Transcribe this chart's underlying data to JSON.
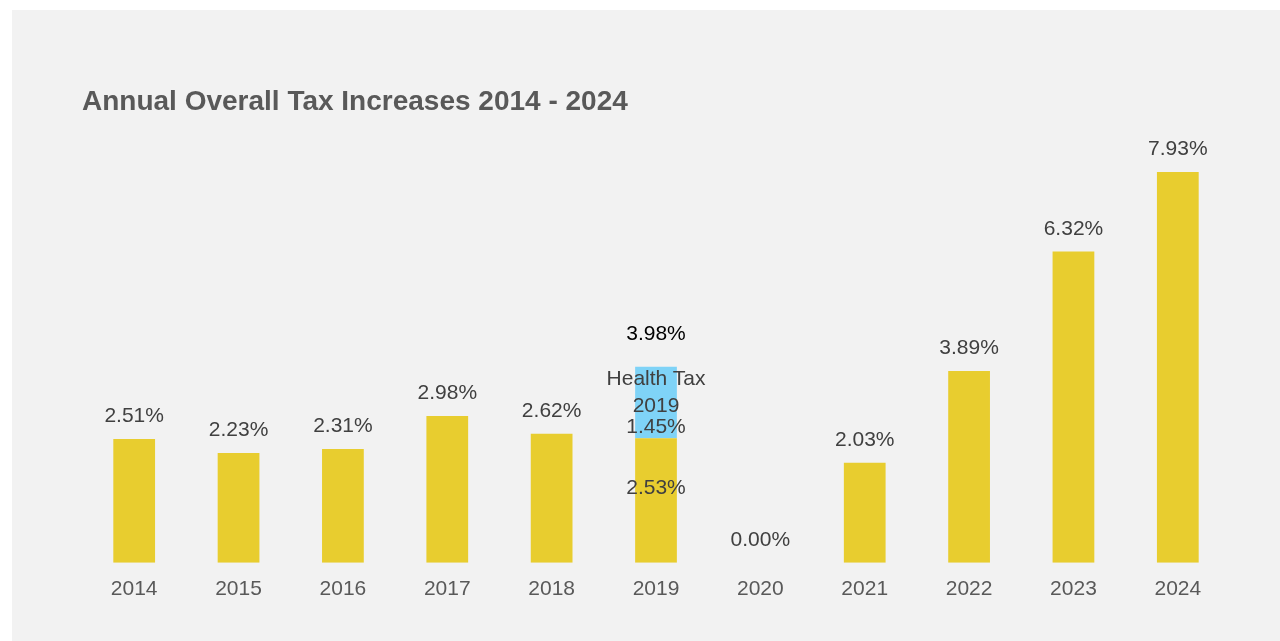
{
  "chart_data": {
    "type": "bar",
    "title": "Annual Overall Tax Increases 2014 - 2024",
    "categories": [
      "2014",
      "2015",
      "2016",
      "2017",
      "2018",
      "2019",
      "2020",
      "2021",
      "2022",
      "2023",
      "2024"
    ],
    "stacked": true,
    "tick_labels": "x",
    "series": [
      {
        "color": "#e8cd2f",
        "values": [
          2.51,
          2.23,
          2.31,
          2.98,
          2.62,
          2.53,
          0.0,
          2.03,
          3.89,
          6.32,
          7.93
        ],
        "value_labels": [
          "2.51%",
          "2.23%",
          "2.31%",
          "2.98%",
          "2.62%",
          "2.53%",
          "0.00%",
          "2.03%",
          "3.89%",
          "6.32%",
          "7.93%"
        ]
      },
      {
        "name": "Health Tax 2019",
        "color": "#7fd3f7",
        "values": [
          null,
          null,
          null,
          null,
          null,
          1.45,
          null,
          null,
          null,
          null,
          null
        ],
        "value_labels": [
          null,
          null,
          null,
          null,
          null,
          "1.45%",
          null,
          null,
          null,
          null,
          null
        ]
      }
    ],
    "totals": [
      null,
      null,
      null,
      null,
      null,
      "3.98%",
      null,
      null,
      null,
      null,
      null
    ]
  }
}
